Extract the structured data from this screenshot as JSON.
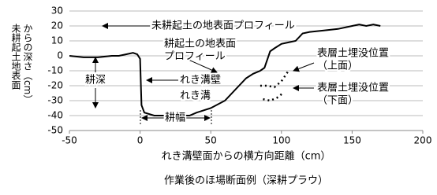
{
  "chart_data": {
    "type": "line",
    "xlabel": "れき溝壁面からの横方向距離（cm）",
    "ylabel": [
      "未耕起土地表面",
      "からの深さ（cm）"
    ],
    "caption": "作業後のほ場断面例（深耕プラウ）",
    "xlim": [
      -50,
      200
    ],
    "xticks": [
      -50,
      0,
      50,
      100,
      150,
      200
    ],
    "ylim": [
      -50,
      30
    ],
    "yticks": [
      -50,
      -40,
      -30,
      -20,
      -10,
      0,
      10,
      20,
      30
    ],
    "grid": true,
    "series": [
      {
        "color": "#000000",
        "dashed": false,
        "x": [
          -50,
          -40,
          -30,
          -20,
          -15,
          -10,
          -5,
          -2,
          0,
          1,
          3,
          10,
          20,
          30,
          35,
          40,
          50,
          60,
          70,
          75,
          80,
          85,
          88,
          92,
          95,
          100,
          105,
          110,
          115,
          120,
          130,
          140,
          150,
          155,
          160,
          165,
          170
        ],
        "values": [
          0,
          -1,
          -1,
          0,
          0,
          1,
          2,
          1,
          -2,
          -33,
          -38,
          -40,
          -40,
          -40,
          -40,
          -38,
          -35,
          -30,
          -20,
          -15,
          -12,
          -10,
          -8,
          3,
          5,
          8,
          9,
          10,
          15,
          16,
          17,
          18,
          20,
          21,
          20,
          21,
          20
        ]
      },
      {
        "color": "#000000",
        "dashed": true,
        "x": [
          85,
          90,
          95,
          100,
          105
        ],
        "values": [
          -20,
          -20,
          -21,
          -17,
          -10
        ]
      },
      {
        "color": "#000000",
        "dashed": true,
        "x": [
          87,
          92,
          97,
          101
        ],
        "values": [
          -29,
          -30,
          -28,
          -25
        ]
      }
    ],
    "annotations": [
      {
        "lines": [
          "未耕起土の地表面プロフィール"
        ]
      },
      {
        "lines": [
          "耕起土の地表面",
          "プロフィール"
        ]
      },
      {
        "lines": [
          "表層土埋没位置",
          "（上面）"
        ]
      },
      {
        "lines": [
          "表層土埋没位置",
          "（下面）"
        ]
      },
      {
        "lines": [
          "耕深"
        ]
      },
      {
        "lines": [
          "れき溝壁"
        ]
      },
      {
        "lines": [
          "れき溝"
        ]
      },
      {
        "lines": [
          "耕幅"
        ]
      }
    ]
  }
}
